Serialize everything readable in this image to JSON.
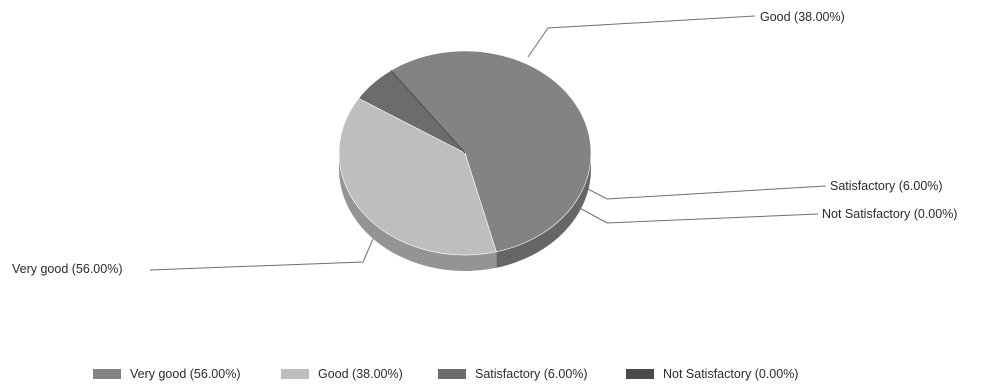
{
  "chart_data": {
    "type": "pie",
    "style": "3d",
    "title": "",
    "legend": "bottom",
    "slices": [
      {
        "label": "Very good (56.00%)",
        "name": "Very good",
        "value": 56.0,
        "color": "#838383"
      },
      {
        "label": "Good (38.00%)",
        "name": "Good",
        "value": 38.0,
        "color": "#bebebe"
      },
      {
        "label": "Satisfactory (6.00%)",
        "name": "Satisfactory",
        "value": 6.0,
        "color": "#6c6c6c"
      },
      {
        "label": "Not Satisfactory (0.00%)",
        "name": "Not Satisfactory",
        "value": 0.0,
        "color": "#4a4a4a"
      }
    ]
  }
}
